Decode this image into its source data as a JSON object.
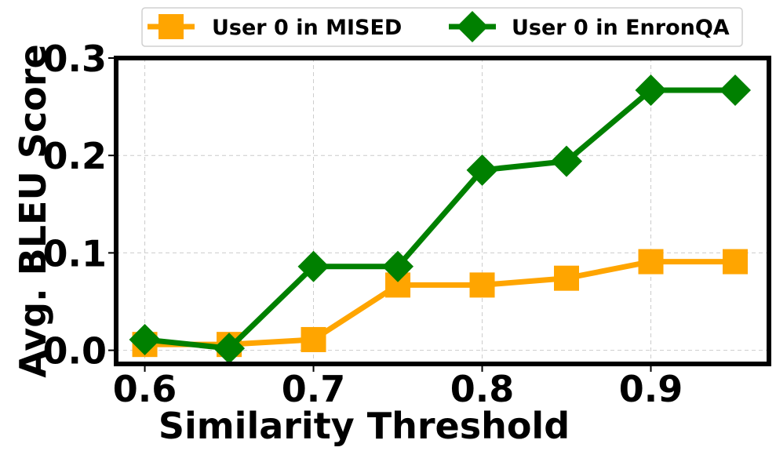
{
  "chart_data": {
    "type": "line",
    "title": "",
    "xlabel": "Similarity Threshold",
    "ylabel": "Avg. BLEU Score",
    "x": [
      0.6,
      0.65,
      0.7,
      0.75,
      0.8,
      0.85,
      0.9,
      0.95
    ],
    "xlim": [
      0.583,
      0.97
    ],
    "ylim": [
      -0.014,
      0.3
    ],
    "xticks": [
      0.6,
      0.7,
      0.8,
      0.9
    ],
    "xtick_labels": [
      "0.6",
      "0.7",
      "0.8",
      "0.9"
    ],
    "yticks": [
      0.0,
      0.1,
      0.2,
      0.3
    ],
    "ytick_labels": [
      "0.0",
      "0.1",
      "0.2",
      "0.3"
    ],
    "grid": true,
    "legend_position": "top-center, outside plot",
    "series": [
      {
        "name": "User 0 in MISED",
        "marker": "square",
        "color": "#FFA500",
        "values": [
          0.006,
          0.006,
          0.011,
          0.067,
          0.067,
          0.074,
          0.091,
          0.091
        ]
      },
      {
        "name": "User 0 in EnronQA",
        "marker": "diamond",
        "color": "#008000",
        "values": [
          0.011,
          0.002,
          0.086,
          0.086,
          0.185,
          0.194,
          0.267,
          0.267
        ]
      }
    ]
  }
}
